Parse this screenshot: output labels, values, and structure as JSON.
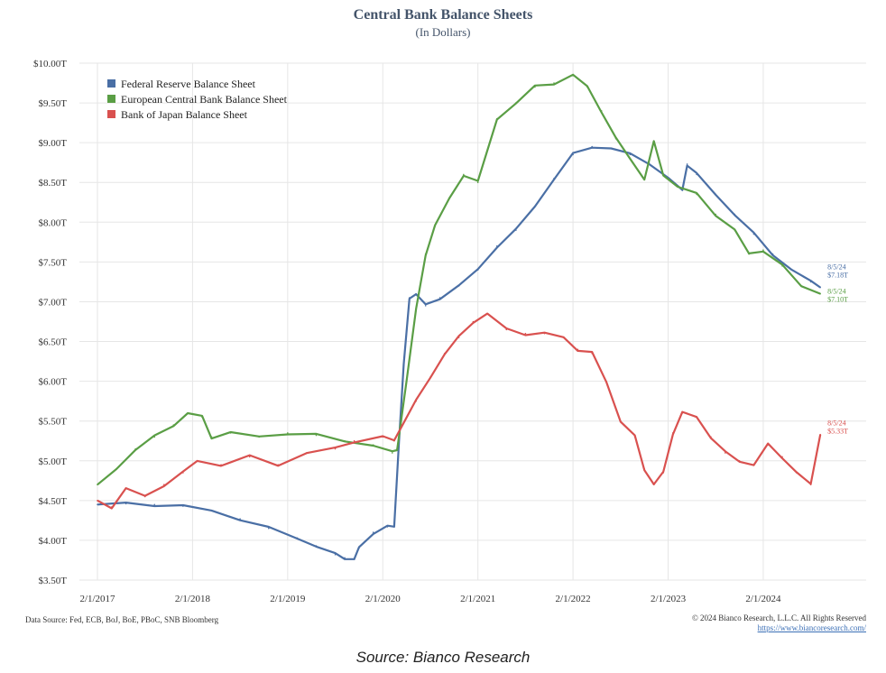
{
  "title": "Central Bank Balance Sheets",
  "subtitle": "(In Dollars)",
  "footer": {
    "data_source": "Data Source: Fed, ECB, BoJ, BoE, PBoC, SNB Bloomberg",
    "copyright": "© 2024 Bianco Research, L.L.C. All Rights Reserved",
    "url": "https://www.biancoresearch.com/"
  },
  "caption": "Source: Bianco Research",
  "chart_data": {
    "type": "line",
    "title": "Central Bank Balance Sheets",
    "subtitle": "(In Dollars)",
    "xlabel": "",
    "ylabel": "",
    "ylim": [
      3.5,
      10.0
    ],
    "yticks": [
      3.5,
      4.0,
      4.5,
      5.0,
      5.5,
      6.0,
      6.5,
      7.0,
      7.5,
      8.0,
      8.5,
      9.0,
      9.5,
      10.0
    ],
    "ytick_labels": [
      "$3.50T",
      "$4.00T",
      "$4.50T",
      "$5.00T",
      "$5.50T",
      "$6.00T",
      "$6.50T",
      "$7.00T",
      "$7.50T",
      "$8.00T",
      "$8.50T",
      "$9.00T",
      "$9.50T",
      "$10.00T"
    ],
    "xlim": [
      2017.0,
      2024.75
    ],
    "xticks": [
      2017.0,
      2018.0,
      2019.0,
      2020.0,
      2021.0,
      2022.0,
      2023.0,
      2024.0
    ],
    "xtick_labels": [
      "2/1/2017",
      "2/1/2018",
      "2/1/2019",
      "2/1/2020",
      "2/1/2021",
      "2/1/2022",
      "2/1/2023",
      "2/1/2024"
    ],
    "grid": true,
    "legend_position": "top-left",
    "series": [
      {
        "name": "Federal Reserve Balance Sheet",
        "color": "#4a6fa5",
        "end_label": [
          "8/5/24",
          "$7.18T"
        ],
        "x": [
          2017.0,
          2017.3,
          2017.6,
          2017.9,
          2018.2,
          2018.5,
          2018.8,
          2019.1,
          2019.3,
          2019.5,
          2019.6,
          2019.7,
          2019.75,
          2019.9,
          2020.05,
          2020.12,
          2020.17,
          2020.22,
          2020.28,
          2020.35,
          2020.45,
          2020.6,
          2020.8,
          2021.0,
          2021.2,
          2021.4,
          2021.6,
          2021.8,
          2022.0,
          2022.2,
          2022.4,
          2022.6,
          2022.8,
          2023.0,
          2023.15,
          2023.2,
          2023.3,
          2023.5,
          2023.7,
          2023.9,
          2024.1,
          2024.3,
          2024.5,
          2024.6
        ],
        "values": [
          4.45,
          4.46,
          4.45,
          4.43,
          4.37,
          4.27,
          4.15,
          4.03,
          3.93,
          3.82,
          3.78,
          3.76,
          3.9,
          4.1,
          4.17,
          4.17,
          5.25,
          6.2,
          7.05,
          7.1,
          6.95,
          7.05,
          7.2,
          7.4,
          7.7,
          7.9,
          8.2,
          8.55,
          8.85,
          8.95,
          8.93,
          8.85,
          8.75,
          8.55,
          8.4,
          8.73,
          8.6,
          8.35,
          8.1,
          7.85,
          7.6,
          7.4,
          7.25,
          7.18
        ]
      },
      {
        "name": "European Central Bank Balance Sheet",
        "color": "#5a9e45",
        "end_label": [
          "8/5/24",
          "$7.10T"
        ],
        "x": [
          2017.0,
          2017.2,
          2017.4,
          2017.6,
          2017.8,
          2017.95,
          2018.1,
          2018.2,
          2018.4,
          2018.7,
          2019.0,
          2019.3,
          2019.6,
          2019.9,
          2020.1,
          2020.15,
          2020.25,
          2020.35,
          2020.45,
          2020.55,
          2020.7,
          2020.85,
          2021.0,
          2021.2,
          2021.4,
          2021.6,
          2021.8,
          2022.0,
          2022.15,
          2022.3,
          2022.45,
          2022.6,
          2022.75,
          2022.85,
          2022.95,
          2023.1,
          2023.3,
          2023.5,
          2023.7,
          2023.85,
          2024.0,
          2024.2,
          2024.4,
          2024.6
        ],
        "values": [
          4.7,
          4.9,
          5.15,
          5.3,
          5.45,
          5.6,
          5.55,
          5.3,
          5.35,
          5.3,
          5.35,
          5.32,
          5.25,
          5.2,
          5.1,
          5.15,
          6.0,
          6.9,
          7.6,
          7.95,
          8.3,
          8.6,
          8.5,
          9.3,
          9.5,
          9.7,
          9.75,
          9.85,
          9.7,
          9.4,
          9.05,
          8.8,
          8.55,
          9.0,
          8.6,
          8.45,
          8.35,
          8.1,
          7.9,
          7.6,
          7.65,
          7.45,
          7.2,
          7.1
        ]
      },
      {
        "name": "Bank of Japan Balance Sheet",
        "color": "#d9514f",
        "end_label": [
          "8/5/24",
          "$5.33T"
        ],
        "x": [
          2017.0,
          2017.15,
          2017.3,
          2017.5,
          2017.7,
          2017.9,
          2018.05,
          2018.3,
          2018.6,
          2018.9,
          2019.2,
          2019.5,
          2019.7,
          2020.0,
          2020.12,
          2020.2,
          2020.35,
          2020.5,
          2020.65,
          2020.8,
          2020.95,
          2021.1,
          2021.3,
          2021.5,
          2021.7,
          2021.9,
          2022.05,
          2022.2,
          2022.35,
          2022.5,
          2022.65,
          2022.75,
          2022.85,
          2022.95,
          2023.05,
          2023.15,
          2023.3,
          2023.45,
          2023.6,
          2023.75,
          2023.9,
          2024.05,
          2024.2,
          2024.35,
          2024.5,
          2024.6
        ],
        "values": [
          4.5,
          4.42,
          4.65,
          4.55,
          4.7,
          4.85,
          5.0,
          4.95,
          5.05,
          4.95,
          5.1,
          5.15,
          5.25,
          5.3,
          5.25,
          5.45,
          5.75,
          6.05,
          6.35,
          6.55,
          6.75,
          6.85,
          6.65,
          6.6,
          6.6,
          6.55,
          6.4,
          6.35,
          6.0,
          5.5,
          5.3,
          4.9,
          4.7,
          4.85,
          5.35,
          5.6,
          5.55,
          5.3,
          5.1,
          5.0,
          4.95,
          5.2,
          5.05,
          4.85,
          4.7,
          5.33
        ]
      }
    ]
  }
}
